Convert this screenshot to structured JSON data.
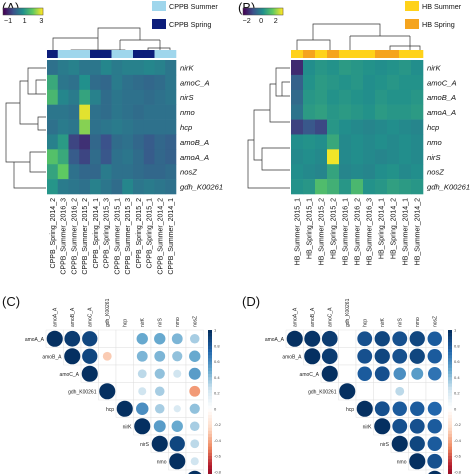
{
  "chart_data": [
    {
      "panel": "(A)",
      "type": "heatmap",
      "rows": [
        "nirK",
        "amoC_A",
        "nirS",
        "nmo",
        "hcp",
        "amoB_A",
        "amoA_A",
        "nosZ",
        "gdh_K00261"
      ],
      "columns": [
        "CPPB_Spring_2014_2",
        "CPPB_Summer_2016_3",
        "CPPB_Summer_2016_2",
        "CPPB_Summer_2015_2",
        "CPPB_Spring_2014_1",
        "CPPB_Spring_2015_3",
        "CPPB_Summer_2015_1",
        "CPPB_Summer_2015_3",
        "CPPB_Spring_2015_2",
        "CPPB_Spring_2015_1",
        "CPPB_Summer_2014_2",
        "CPPB_Summer_2014_1"
      ],
      "column_groups": [
        "Spring",
        "Summer",
        "Summer",
        "Summer",
        "Spring",
        "Spring",
        "Summer",
        "Summer",
        "Spring",
        "Spring",
        "Summer",
        "Summer"
      ],
      "legend": {
        "Summer": "CPPB Summer",
        "Spring": "CPPB Spring"
      },
      "group_colors": {
        "Summer": "#9fd6ec",
        "Spring": "#0c1d7a"
      },
      "color_scale": {
        "ticks": [
          -1,
          1,
          3
        ],
        "colors": [
          "#440154",
          "#3b528b",
          "#21908c",
          "#5ec962",
          "#fde725"
        ],
        "range": [
          -1.6,
          3.2
        ]
      },
      "values": [
        [
          0.2,
          0.4,
          0.5,
          0.3,
          0.3,
          0.6,
          0.4,
          0.5,
          0.5,
          0.6,
          0.5,
          0.3
        ],
        [
          1.3,
          0.3,
          0.2,
          0.8,
          0.1,
          0.0,
          0.4,
          0.2,
          0.1,
          0.0,
          0.1,
          0.3
        ],
        [
          1.6,
          0.6,
          0.4,
          1.2,
          0.5,
          0.1,
          0.3,
          0.2,
          0.2,
          0.1,
          0.2,
          0.3
        ],
        [
          0.3,
          0.3,
          0.2,
          3.0,
          0.2,
          0.1,
          0.3,
          0.2,
          0.1,
          0.2,
          0.2,
          0.2
        ],
        [
          0.2,
          0.4,
          0.3,
          2.3,
          0.2,
          0.3,
          0.4,
          0.3,
          0.2,
          0.2,
          0.2,
          0.2
        ],
        [
          0.5,
          1.0,
          -0.6,
          -0.9,
          0.0,
          -0.4,
          0.1,
          0.2,
          0.0,
          -0.2,
          0.0,
          -0.1
        ],
        [
          1.8,
          1.3,
          -0.2,
          -0.6,
          0.1,
          -0.3,
          0.2,
          0.3,
          0.1,
          -0.2,
          0.0,
          -0.1
        ],
        [
          1.2,
          2.0,
          0.2,
          0.0,
          0.0,
          0.4,
          0.2,
          0.2,
          0.1,
          0.0,
          0.0,
          0.1
        ],
        [
          0.9,
          0.4,
          0.3,
          0.2,
          0.5,
          0.3,
          0.1,
          0.6,
          0.3,
          0.4,
          0.3,
          0.2
        ]
      ]
    },
    {
      "panel": "(B)",
      "type": "heatmap",
      "rows": [
        "nirK",
        "amoC_A",
        "amoB_A",
        "amoA_A",
        "hcp",
        "nmo",
        "nirS",
        "nosZ",
        "gdh_K00261"
      ],
      "columns": [
        "HB_Summer_2015_1",
        "HB_Spring_2015_1",
        "HB_Summer_2015_2",
        "HB_Spring_2015_2",
        "HB_Summer_2016_1",
        "HB_Summer_2016_2",
        "HB_Summer_2016_3",
        "HB_Spring_2014_1",
        "HB_Spring_2014_2",
        "HB_Summer_2014_1",
        "HB_Summer_2014_2"
      ],
      "column_groups": [
        "Summer",
        "Spring",
        "Summer",
        "Spring",
        "Summer",
        "Summer",
        "Summer",
        "Spring",
        "Spring",
        "Summer",
        "Summer"
      ],
      "legend": {
        "Summer": "HB Summer",
        "Spring": "HB Spring"
      },
      "group_colors": {
        "Summer": "#ffd21a",
        "Spring": "#f5a41e"
      },
      "color_scale": {
        "ticks": [
          -2,
          0,
          2
        ],
        "colors": [
          "#440154",
          "#3b528b",
          "#21908c",
          "#5ec962",
          "#fde725"
        ],
        "range": [
          -2.5,
          3.0
        ]
      },
      "values": [
        [
          -1.8,
          0.2,
          0.4,
          0.3,
          0.5,
          0.4,
          0.3,
          0.2,
          0.3,
          0.4,
          0.2
        ],
        [
          -0.8,
          0.3,
          0.5,
          0.4,
          0.3,
          0.4,
          0.2,
          0.3,
          0.4,
          0.3,
          0.3
        ],
        [
          -0.6,
          0.4,
          0.5,
          0.3,
          0.4,
          0.3,
          0.2,
          0.4,
          0.3,
          0.3,
          0.4
        ],
        [
          -0.4,
          0.5,
          0.6,
          0.4,
          0.5,
          0.4,
          0.3,
          0.5,
          0.4,
          0.4,
          0.5
        ],
        [
          -1.4,
          -1.0,
          -1.3,
          0.4,
          0.2,
          0.1,
          0.0,
          0.1,
          0.2,
          0.1,
          0.0
        ],
        [
          0.2,
          0.3,
          0.2,
          0.8,
          0.1,
          0.2,
          0.1,
          0.2,
          0.1,
          0.2,
          0.1
        ],
        [
          0.1,
          0.2,
          0.1,
          2.9,
          0.1,
          0.2,
          0.1,
          0.0,
          0.1,
          0.2,
          0.1
        ],
        [
          0.2,
          0.1,
          0.0,
          0.7,
          0.0,
          0.1,
          0.0,
          0.2,
          0.3,
          0.1,
          0.2
        ],
        [
          0.3,
          0.4,
          1.3,
          1.0,
          0.4,
          1.2,
          0.3,
          0.4,
          0.6,
          0.5,
          0.4
        ]
      ]
    },
    {
      "panel": "(C)",
      "type": "correlation-matrix",
      "labels": [
        "amoA_A",
        "amoB_A",
        "amoC_A",
        "gdh_K00261",
        "hcp",
        "nirK",
        "nirS",
        "nmo",
        "nosZ"
      ],
      "colorbar_ticks": [
        1,
        0.8,
        0.6,
        0.4,
        0.2,
        0,
        -0.2,
        -0.4,
        -0.6,
        -0.8,
        -1
      ],
      "matrix": [
        [
          1.0,
          0.95,
          0.9,
          0.0,
          0.0,
          0.5,
          0.5,
          0.45,
          0.35
        ],
        [
          0.95,
          1.0,
          0.9,
          -0.3,
          0.0,
          0.45,
          0.45,
          0.4,
          0.5
        ],
        [
          0.9,
          0.9,
          1.0,
          0.0,
          0.0,
          0.3,
          0.4,
          0.25,
          0.55
        ],
        [
          0.0,
          -0.3,
          0.0,
          1.0,
          0.0,
          0.25,
          0.35,
          0.0,
          -0.45
        ],
        [
          0.0,
          0.0,
          0.0,
          0.0,
          1.0,
          0.6,
          0.35,
          0.2,
          0.4
        ],
        [
          0.5,
          0.45,
          0.3,
          0.25,
          0.6,
          1.0,
          0.55,
          0.5,
          0.35
        ],
        [
          0.5,
          0.45,
          0.4,
          0.35,
          0.35,
          0.55,
          1.0,
          0.9,
          0.3
        ],
        [
          0.45,
          0.4,
          0.25,
          0.0,
          0.2,
          0.5,
          0.9,
          1.0,
          0.25
        ],
        [
          0.35,
          0.5,
          0.55,
          -0.45,
          0.4,
          0.35,
          0.3,
          0.25,
          1.0
        ]
      ]
    },
    {
      "panel": "(D)",
      "type": "correlation-matrix",
      "labels": [
        "amoA_A",
        "amoB_A",
        "amoC_A",
        "gdh_K00261",
        "hcp",
        "nirK",
        "nirS",
        "nmo",
        "nosZ"
      ],
      "colorbar_ticks": [
        1,
        0.8,
        0.6,
        0.4,
        0.2,
        0,
        -0.2,
        -0.4,
        -0.6,
        -0.8,
        -1
      ],
      "matrix": [
        [
          1.0,
          0.98,
          0.95,
          0.0,
          0.85,
          0.9,
          0.85,
          0.9,
          0.8
        ],
        [
          0.98,
          1.0,
          0.95,
          0.0,
          0.85,
          0.9,
          0.85,
          0.9,
          0.8
        ],
        [
          0.95,
          0.95,
          1.0,
          0.0,
          0.8,
          0.85,
          0.6,
          0.55,
          0.7
        ],
        [
          0.0,
          0.0,
          0.0,
          1.0,
          0.0,
          0.0,
          0.3,
          0.0,
          0.0
        ],
        [
          0.85,
          0.85,
          0.8,
          0.0,
          1.0,
          0.85,
          0.8,
          0.8,
          0.75
        ],
        [
          0.9,
          0.9,
          0.85,
          0.0,
          0.85,
          1.0,
          0.85,
          0.85,
          0.8
        ],
        [
          0.85,
          0.85,
          0.6,
          0.3,
          0.8,
          0.85,
          1.0,
          0.9,
          0.8
        ],
        [
          0.9,
          0.9,
          0.55,
          0.0,
          0.8,
          0.85,
          0.9,
          1.0,
          0.85
        ],
        [
          0.8,
          0.8,
          0.7,
          0.0,
          0.75,
          0.8,
          0.8,
          0.85,
          1.0
        ]
      ]
    }
  ]
}
